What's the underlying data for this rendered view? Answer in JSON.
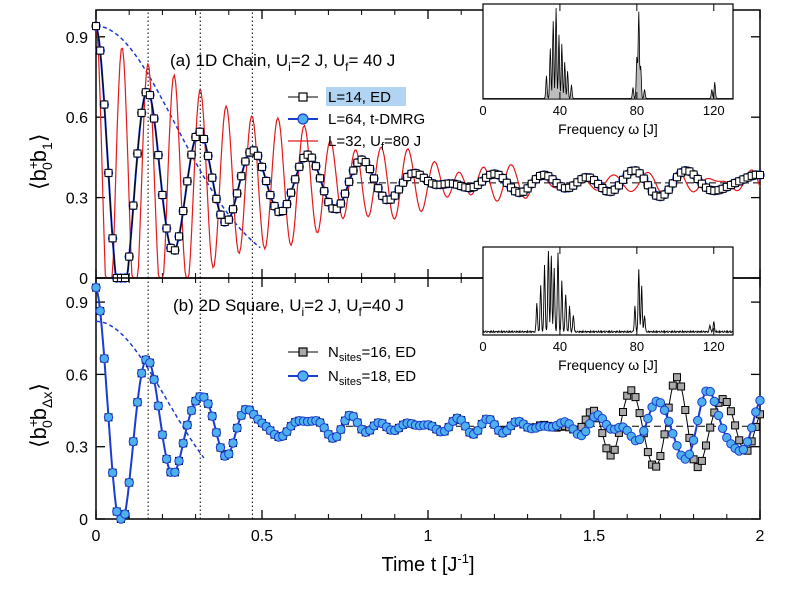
{
  "chart_data": [
    {
      "panel": "a",
      "type": "line",
      "title": "(a) 1D Chain, U_i=2 J, U_f= 40 J",
      "title_parts": {
        "prefix": "(a) 1D Chain, U",
        "sub1": "i",
        "mid": "=2 J, U",
        "sub2": "f",
        "suffix": "= 40 J"
      },
      "ylabel": "⟨b†0b1⟩",
      "ylabel_parts": {
        "open": "⟨b",
        "sup": "+",
        "sub1": "0",
        "mid": "b",
        "sub2": "1",
        "close": "⟩"
      },
      "xlim": [
        0,
        2
      ],
      "ylim": [
        0,
        1.0
      ],
      "yticks": [
        "0",
        "0.3",
        "0.6",
        "0.9"
      ],
      "ytick_values": [
        0,
        0.3,
        0.6,
        0.9
      ],
      "asymptote": 0.355,
      "vlines": [
        0.157,
        0.314,
        0.471
      ],
      "envelope": {
        "amplitude": 0.94,
        "width": 0.34,
        "t_end": 0.5
      },
      "series": [
        {
          "name": "L=14, ED",
          "style": "square-black",
          "highlight": "#b0d4f1",
          "model": {
            "period": 0.157,
            "tau": 0.3,
            "dense_freqs": [
              5.2,
              6.1,
              7.3
            ],
            "dense_amp": 0.045
          }
        },
        {
          "name": "L=64, t-DMRG",
          "style": "circle-blue",
          "model": {
            "period": 0.157,
            "tau": 0.3,
            "dense_freqs": [
              5.2,
              6.1,
              7.3
            ],
            "dense_amp": 0.045
          }
        },
        {
          "name": "L=32, U_f=80 J",
          "style": "red-line",
          "name_parts": {
            "prefix": "L=32, U",
            "sub": "f",
            "suffix": "=80 J"
          },
          "model": {
            "period": 0.0785,
            "tau": 0.55,
            "dense_freqs": [
              9.8,
              13.1
            ],
            "dense_amp": 0.04
          }
        }
      ],
      "inset": {
        "xlabel": "Frequency ω [J]",
        "xticks": [
          "0",
          "40",
          "80",
          "120"
        ],
        "xtick_values": [
          0,
          40,
          80,
          120
        ],
        "xlim": [
          0,
          130
        ],
        "peaks": [
          {
            "f": 33,
            "h": 0.25
          },
          {
            "f": 35,
            "h": 0.55
          },
          {
            "f": 36.5,
            "h": 0.85
          },
          {
            "f": 38,
            "h": 1.0
          },
          {
            "f": 39.5,
            "h": 0.7
          },
          {
            "f": 41,
            "h": 0.6
          },
          {
            "f": 42.5,
            "h": 0.4
          },
          {
            "f": 44,
            "h": 0.3
          },
          {
            "f": 46,
            "h": 0.15
          },
          {
            "f": 78,
            "h": 0.12
          },
          {
            "f": 80,
            "h": 0.45
          },
          {
            "f": 81,
            "h": 0.95
          },
          {
            "f": 82,
            "h": 0.35
          },
          {
            "f": 84,
            "h": 0.1
          },
          {
            "f": 119,
            "h": 0.1
          },
          {
            "f": 120.5,
            "h": 0.18
          }
        ]
      }
    },
    {
      "panel": "b",
      "type": "line",
      "title": "(b) 2D Square, U_i=2 J, U_f=40 J",
      "title_parts": {
        "prefix": "(b) 2D Square, U",
        "sub1": "i",
        "mid": "=2 J, U",
        "sub2": "f",
        "suffix": "=40 J"
      },
      "ylabel": "⟨b†0bΔx⟩",
      "ylabel_parts": {
        "open": "⟨b",
        "sup": "+",
        "sub1": "0",
        "mid": "b",
        "sub2": "Δx",
        "close": "⟩"
      },
      "xlabel": "Time t [J⁻¹]",
      "xlabel_parts": {
        "prefix": "Time t [J",
        "sup": "-1",
        "suffix": "]"
      },
      "xlim": [
        0,
        2
      ],
      "ylim": [
        0,
        1.0
      ],
      "xticks": [
        "0",
        "0.5",
        "1",
        "1.5",
        "2"
      ],
      "xtick_values": [
        0,
        0.5,
        1,
        1.5,
        2
      ],
      "yticks": [
        "0",
        "0.3",
        "0.6",
        "0.9"
      ],
      "ytick_values": [
        0,
        0.3,
        0.6,
        0.9
      ],
      "asymptote": 0.385,
      "vlines": [
        0.157,
        0.314,
        0.471
      ],
      "envelope": {
        "amplitude": 0.82,
        "width": 0.3,
        "t_end": 0.33
      },
      "series": [
        {
          "name": "N_sites=16, ED",
          "style": "square-gray",
          "name_parts": {
            "prefix": "N",
            "sub": "sites",
            "suffix": "=16, ED"
          },
          "model": {
            "period": 0.157,
            "tau": 0.22,
            "revival_center": 1.75,
            "revival_width": 0.22,
            "revival_amp": 0.2,
            "revival_period": 0.135
          }
        },
        {
          "name": "N_sites=18, ED",
          "style": "circle-blue",
          "name_parts": {
            "prefix": "N",
            "sub": "sites",
            "suffix": "=18, ED"
          },
          "model": {
            "period": 0.157,
            "tau": 0.22,
            "revival_center": 1.85,
            "revival_width": 0.25,
            "revival_amp": 0.14,
            "revival_period": 0.16
          }
        }
      ],
      "inset": {
        "xlabel": "Frequency ω [J]",
        "xticks": [
          "0",
          "40",
          "80",
          "120"
        ],
        "xtick_values": [
          0,
          40,
          80,
          120
        ],
        "xlim": [
          0,
          130
        ],
        "peaks": [
          {
            "f": 28,
            "h": 0.35
          },
          {
            "f": 30,
            "h": 0.55
          },
          {
            "f": 32,
            "h": 0.8
          },
          {
            "f": 34,
            "h": 1.0
          },
          {
            "f": 35.5,
            "h": 0.9
          },
          {
            "f": 37,
            "h": 0.75
          },
          {
            "f": 39,
            "h": 0.95
          },
          {
            "f": 41,
            "h": 0.6
          },
          {
            "f": 43,
            "h": 0.45
          },
          {
            "f": 45,
            "h": 0.3
          },
          {
            "f": 47,
            "h": 0.2
          },
          {
            "f": 79,
            "h": 0.3
          },
          {
            "f": 81,
            "h": 0.75
          },
          {
            "f": 82.5,
            "h": 0.55
          },
          {
            "f": 84,
            "h": 0.2
          },
          {
            "f": 118,
            "h": 0.08
          },
          {
            "f": 120,
            "h": 0.12
          }
        ]
      }
    }
  ]
}
